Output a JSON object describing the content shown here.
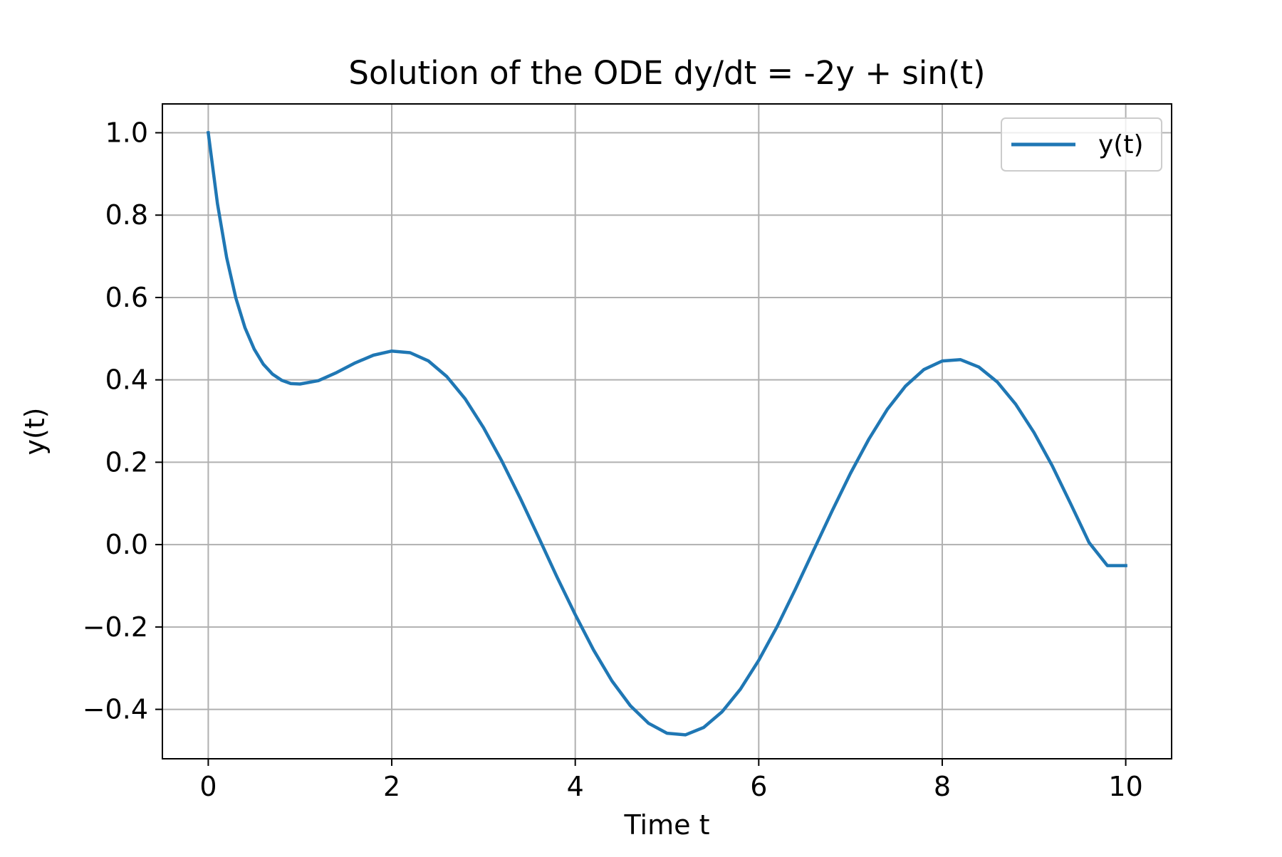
{
  "chart_data": {
    "type": "line",
    "title": "Solution of the ODE dy/dt = -2y + sin(t)",
    "xlabel": "Time t",
    "ylabel": "y(t)",
    "xlim": [
      -0.5,
      10.5
    ],
    "ylim": [
      -0.52,
      1.07
    ],
    "xticks": [
      0,
      2,
      4,
      6,
      8,
      10
    ],
    "xtick_labels": [
      "0",
      "2",
      "4",
      "6",
      "8",
      "10"
    ],
    "yticks": [
      -0.4,
      -0.2,
      0.0,
      0.2,
      0.4,
      0.6,
      0.8,
      1.0
    ],
    "ytick_labels": [
      "−0.4",
      "−0.2",
      "0.0",
      "0.2",
      "0.4",
      "0.6",
      "0.8",
      "1.0"
    ],
    "grid": true,
    "legend_position": "top-right",
    "series": [
      {
        "name": "y(t)",
        "color": "#1f77b4",
        "x": [
          0,
          0.1,
          0.2,
          0.3,
          0.4,
          0.5,
          0.6,
          0.7,
          0.8,
          0.9,
          1.0,
          1.2,
          1.4,
          1.6,
          1.8,
          2.0,
          2.2,
          2.4,
          2.6,
          2.8,
          3.0,
          3.2,
          3.4,
          3.6,
          3.8,
          4.0,
          4.2,
          4.4,
          4.6,
          4.8,
          5.0,
          5.2,
          5.4,
          5.6,
          5.8,
          6.0,
          6.2,
          6.4,
          6.6,
          6.8,
          7.0,
          7.2,
          7.4,
          7.6,
          7.8,
          8.0,
          8.2,
          8.4,
          8.6,
          8.8,
          9.0,
          9.2,
          9.4,
          9.6,
          9.8,
          10.0
        ],
        "y": [
          1.0,
          0.828,
          0.697,
          0.599,
          0.527,
          0.475,
          0.438,
          0.414,
          0.399,
          0.391,
          0.39,
          0.398,
          0.418,
          0.441,
          0.46,
          0.47,
          0.466,
          0.446,
          0.408,
          0.354,
          0.284,
          0.203,
          0.113,
          0.018,
          -0.078,
          -0.17,
          -0.256,
          -0.331,
          -0.391,
          -0.434,
          -0.458,
          -0.462,
          -0.444,
          -0.406,
          -0.351,
          -0.281,
          -0.199,
          -0.108,
          -0.013,
          0.082,
          0.173,
          0.256,
          0.328,
          0.385,
          0.425,
          0.446,
          0.449,
          0.431,
          0.395,
          0.341,
          0.272,
          0.191,
          0.099,
          0.005,
          -0.051,
          -0.051
        ]
      }
    ]
  }
}
